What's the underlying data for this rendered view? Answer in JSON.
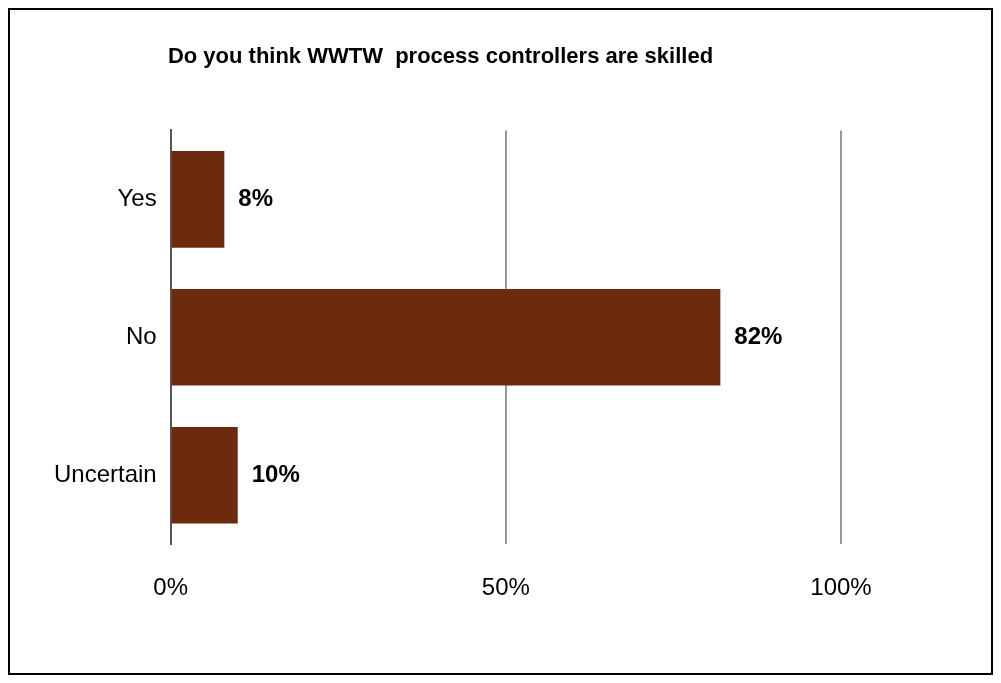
{
  "chart_data": {
    "type": "bar",
    "orientation": "horizontal",
    "title": "Do you think WWTW  process controllers are skilled",
    "categories": [
      "Yes",
      "No",
      "Uncertain"
    ],
    "values": [
      8,
      82,
      10
    ],
    "value_labels": [
      "8%",
      "82%",
      "10%"
    ],
    "color": "#6e2a0e",
    "xlim": [
      0,
      100
    ],
    "xticks": [
      {
        "value": 0,
        "label": "0%"
      },
      {
        "value": 50,
        "label": "50%"
      },
      {
        "value": 100,
        "label": "100%"
      }
    ],
    "grid": "x",
    "legend": false
  }
}
